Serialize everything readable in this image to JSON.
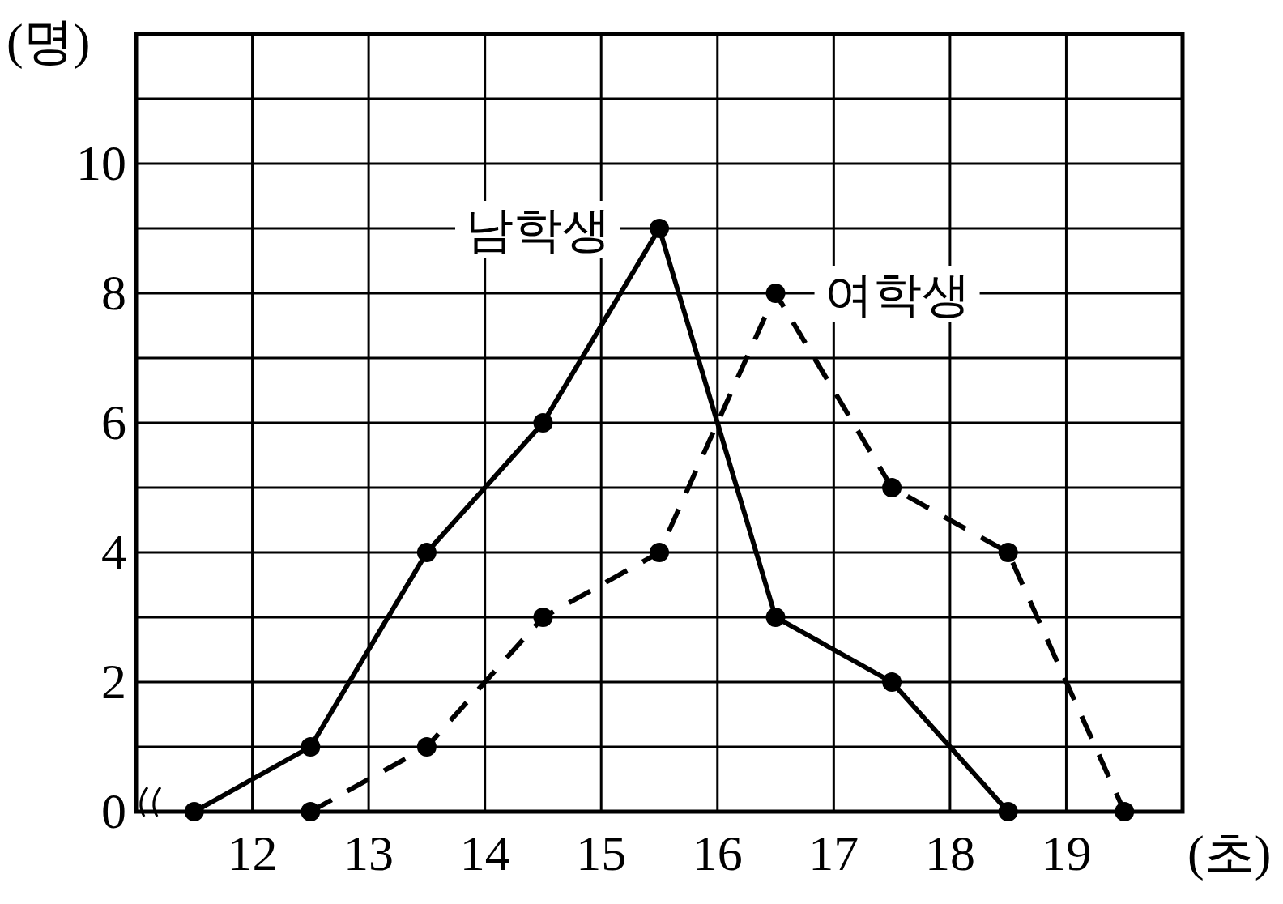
{
  "chart_data": {
    "type": "line",
    "xlabel": "(초)",
    "ylabel": "(명)",
    "grid": true,
    "marker": "circle",
    "xlim": [
      11,
      20
    ],
    "ylim": [
      0,
      12
    ],
    "xticks": [
      {
        "value": 11,
        "label": null
      },
      12,
      13,
      14,
      15,
      16,
      17,
      18,
      19,
      {
        "value": 20,
        "label": null
      }
    ],
    "yticks": [
      0,
      {
        "value": 1,
        "label": null
      },
      2,
      {
        "value": 3,
        "label": null
      },
      4,
      {
        "value": 5,
        "label": null
      },
      6,
      {
        "value": 7,
        "label": null
      },
      8,
      {
        "value": 9,
        "label": null
      },
      10,
      {
        "value": 11,
        "label": null
      },
      {
        "value": 12,
        "label": null
      }
    ],
    "series": [
      {
        "name": "남학생",
        "color": "#000000",
        "line_style": "solid",
        "x": [
          11.5,
          12.5,
          13.5,
          14.5,
          15.5,
          16.5,
          17.5,
          18.5
        ],
        "values": [
          0,
          1,
          4,
          6,
          9,
          3,
          2,
          0
        ]
      },
      {
        "name": "여학생",
        "color": "#000000",
        "line_style": "dashed",
        "x": [
          12.5,
          13.5,
          14.5,
          15.5,
          16.5,
          17.5,
          18.5,
          19.5
        ],
        "values": [
          0,
          1,
          3,
          4,
          8,
          5,
          4,
          0
        ]
      }
    ]
  }
}
